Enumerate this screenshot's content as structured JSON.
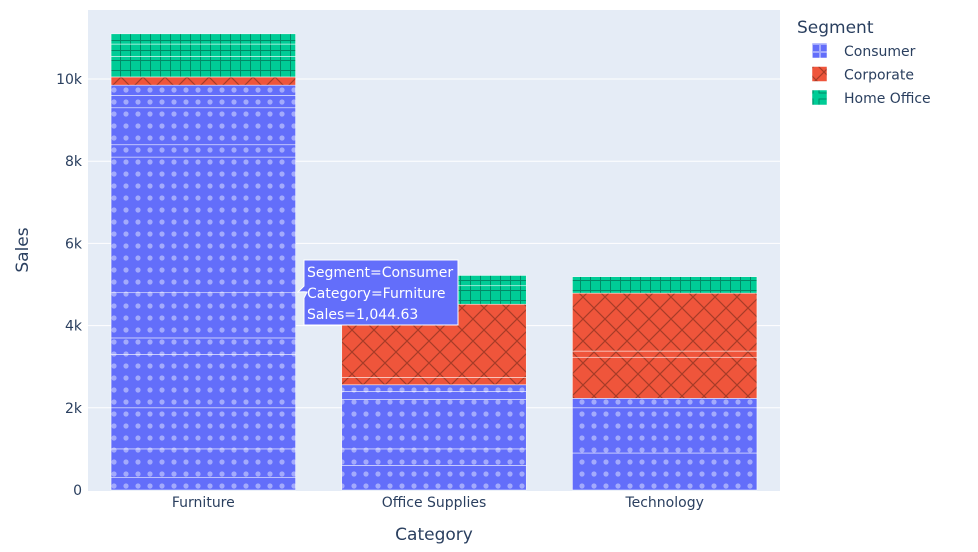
{
  "chart_data": {
    "type": "bar",
    "barmode": "stack",
    "categories": [
      "Furniture",
      "Office Supplies",
      "Technology"
    ],
    "xlabel": "Category",
    "ylabel": "Sales",
    "ylim": [
      0,
      11500
    ],
    "yticks": [
      0,
      2000,
      4000,
      6000,
      8000,
      10000
    ],
    "ytick_labels": [
      "0",
      "2k",
      "4k",
      "6k",
      "8k",
      "10k"
    ],
    "grid": true,
    "legend": {
      "title": "Segment",
      "placement": "top-right"
    },
    "series": [
      {
        "name": "Consumer",
        "color": "#636efa",
        "pattern": "dots",
        "values": [
          9850,
          2560,
          2230
        ],
        "segments": [
          [
            300,
            700,
            1000,
            1300,
            400,
            1100,
            3300,
            300,
            900,
            300,
            250
          ],
          [
            600,
            400,
            1200,
            200,
            160
          ],
          [
            900,
            1100,
            230
          ]
        ]
      },
      {
        "name": "Corporate",
        "color": "#ef553b",
        "pattern": "crosshatch",
        "values": [
          200,
          1960,
          2560
        ],
        "segments": [
          [
            200
          ],
          [
            180,
            1780
          ],
          [
            1000,
            150,
            1410
          ]
        ]
      },
      {
        "name": "Home Office",
        "color": "#00cc96",
        "pattern": "grid",
        "values": [
          1050,
          700,
          400
        ],
        "segments": [
          [
            500,
            300,
            250
          ],
          [
            450,
            250
          ],
          [
            400
          ]
        ]
      }
    ]
  },
  "tooltip": {
    "lines": [
      "Segment=Consumer",
      "Category=Furniture",
      "Sales=1,044.63"
    ],
    "category": "Furniture",
    "series": "Consumer",
    "value": 1044.63
  }
}
